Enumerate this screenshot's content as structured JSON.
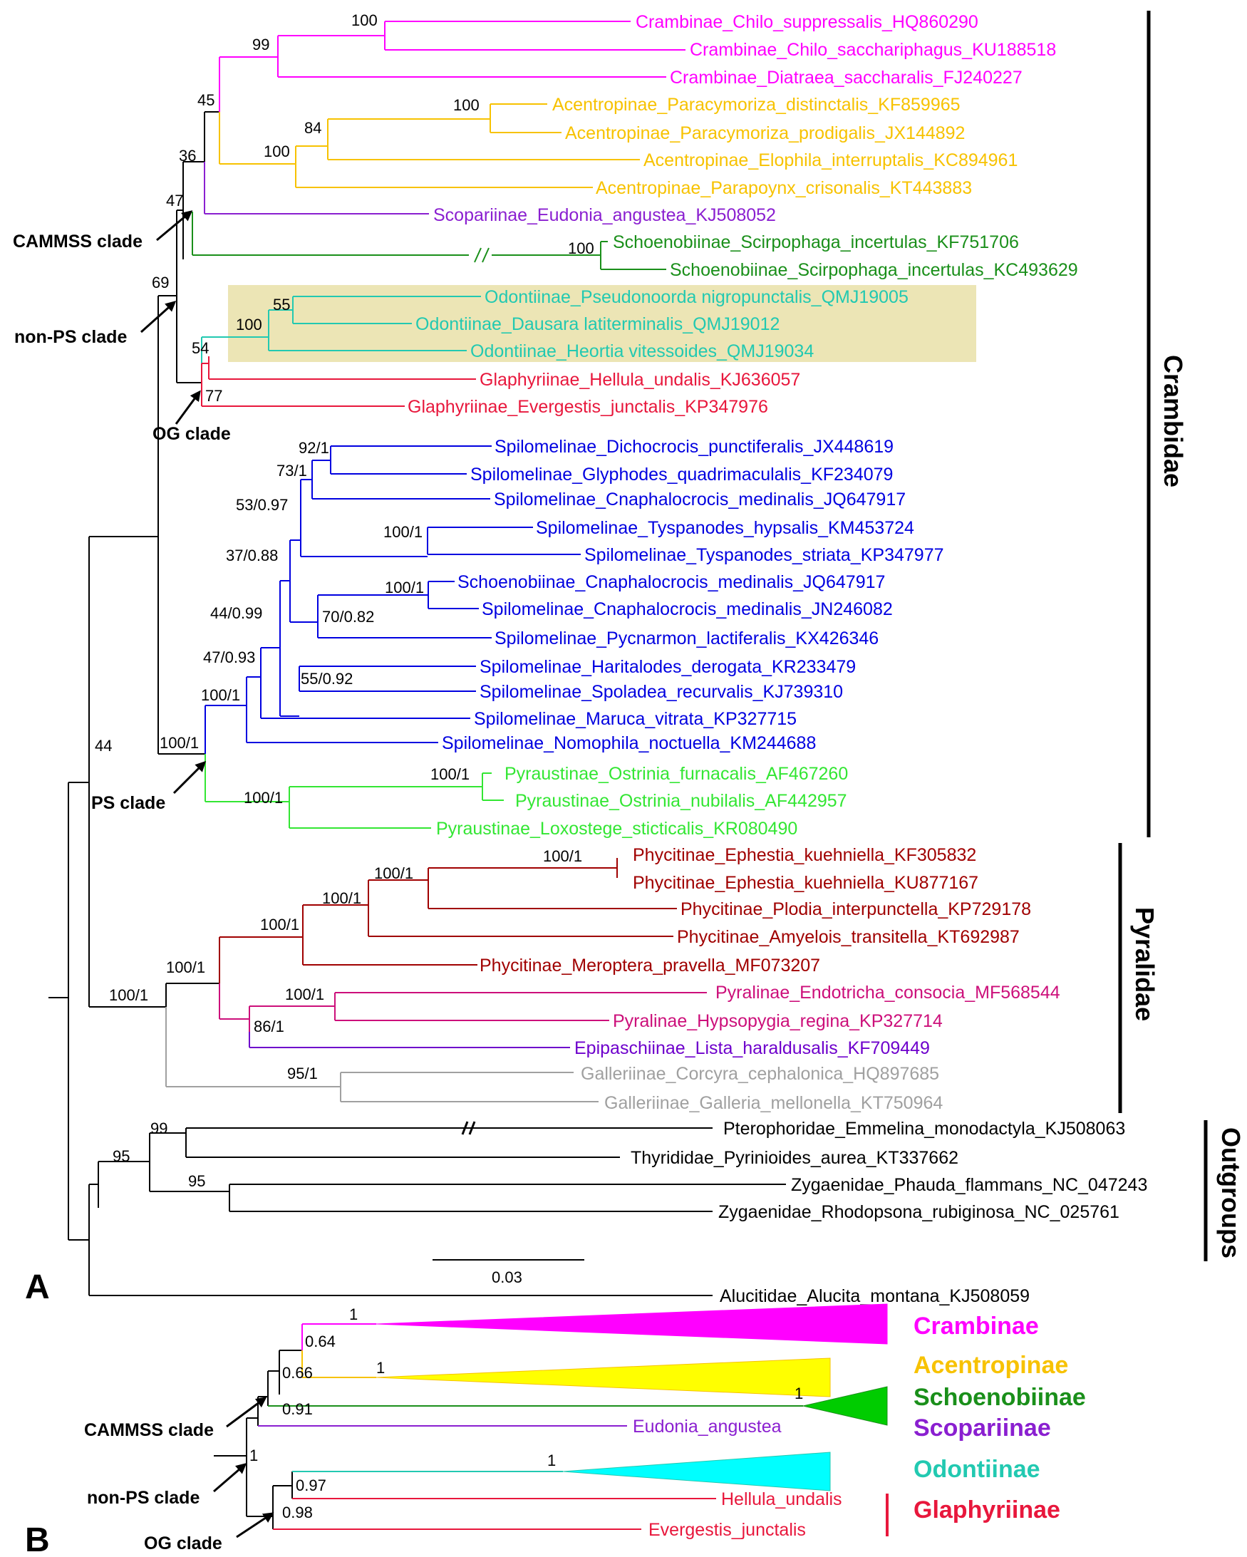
{
  "colors": {
    "crambinae": "#ff00ff",
    "acentropinae": "#f7c200",
    "scopariinae": "#8a1fd0",
    "schoenobiinae": "#1a8f1a",
    "odontiinae": "#22c9b1",
    "glaphyriinae": "#e8173c",
    "spilomelinae": "#0000e0",
    "pyraustinae": "#33e633",
    "phycitinae": "#a00000",
    "pyralinae": "#cc0f7a",
    "epipaschiinae": "#6e00cc",
    "galleriinae": "#a0a0a0",
    "outgroup": "#000000",
    "highlight": "#ece5b5",
    "acentropinae_fill": "#ffff00",
    "schoenobiinae_fill": "#00cc00",
    "odontiinae_fill": "#00ffff"
  },
  "panel_a": {
    "label": "A",
    "taxa": [
      "Crambinae_Chilo_suppressalis_HQ860290",
      "Crambinae_Chilo_sacchariphagus_KU188518",
      "Crambinae_Diatraea_saccharalis_FJ240227",
      "Acentropinae_Paracymoriza_distinctalis_KF859965",
      "Acentropinae_Paracymoriza_prodigalis_JX144892",
      "Acentropinae_Elophila_interruptalis_KC894961",
      "Acentropinae_Parapoynx_crisonalis_KT443883",
      "Scopariinae_Eudonia_angustea_KJ508052",
      "Schoenobiinae_Scirpophaga_incertulas_KF751706",
      "Schoenobiinae_Scirpophaga_incertulas_KC493629",
      "Odontiinae_Pseudonoorda nigropunctalis_QMJ19005",
      "Odontiinae_Dausara latiterminalis_QMJ19012",
      "Odontiinae_Heortia vitessoides_QMJ19034",
      "Glaphyriinae_Hellula_undalis_KJ636057",
      "Glaphyriinae_Evergestis_junctalis_KP347976",
      "Spilomelinae_Dichocrocis_punctiferalis_JX448619",
      "Spilomelinae_Glyphodes_quadrimaculalis_KF234079",
      "Spilomelinae_Cnaphalocrocis_medinalis_JQ647917",
      "Spilomelinae_Tyspanodes_hypsalis_KM453724",
      "Spilomelinae_Tyspanodes_striata_KP347977",
      "Schoenobiinae_Cnaphalocrocis_medinalis_JQ647917",
      "Spilomelinae_Cnaphalocrocis_medinalis_JN246082",
      "Spilomelinae_Pycnarmon_lactiferalis_KX426346",
      "Spilomelinae_Haritalodes_derogata_KR233479",
      "Spilomelinae_Spoladea_recurvalis_KJ739310",
      "Spilomelinae_Maruca_vitrata_KP327715",
      "Spilomelinae_Nomophila_noctuella_KM244688",
      "Pyraustinae_Ostrinia_furnacalis_AF467260",
      "Pyraustinae_Ostrinia_nubilalis_AF442957",
      "Pyraustinae_Loxostege_sticticalis_KR080490",
      "Phycitinae_Ephestia_kuehniella_KF305832",
      "Phycitinae_Ephestia_kuehniella_KU877167",
      "Phycitinae_Plodia_interpunctella_KP729178",
      "Phycitinae_Amyelois_transitella_KT692987",
      "Phycitinae_Meroptera_pravella_MF073207",
      "Pyralinae_Endotricha_consocia_MF568544",
      "Pyralinae_Hypsopygia_regina_KP327714",
      "Epipaschiinae_Lista_haraldusalis_KF709449",
      "Galleriinae_Corcyra_cephalonica_HQ897685",
      "Galleriinae_Galleria_mellonella_KT750964",
      "Pterophoridae_Emmelina_monodactyla_KJ508063",
      "Thyrididae_Pyrinioides_aurea_KT337662",
      "Zygaenidae_Phauda_flammans_NC_047243",
      "Zygaenidae_Rhodopsona_rubiginosa_NC_025761",
      "Alucitidae_Alucita_montana_KJ508059"
    ],
    "supports": [
      "100",
      "99",
      "45",
      "100",
      "84",
      "100",
      "36",
      "47",
      "100",
      "69",
      "55",
      "100",
      "54",
      "77",
      "92/1",
      "73/1",
      "53/0.97",
      "100/1",
      "37/0.88",
      "100/1",
      "70/0.82",
      "44/0.99",
      "55/0.92",
      "47/0.93",
      "100/1",
      "100/1",
      "100/1",
      "100/1",
      "100/1",
      "100/1",
      "100/1",
      "100/1",
      "100/1",
      "86/1",
      "100/1",
      "100/1",
      "95/1",
      "44",
      "99",
      "95",
      "95"
    ],
    "clades": [
      "CAMMSS clade",
      "non-PS clade",
      "OG clade",
      "PS clade"
    ],
    "groups": [
      "Crambidae",
      "Pyralidae",
      "Outgroups"
    ],
    "scale_label": "0.03"
  },
  "panel_b": {
    "label": "B",
    "taxa": [
      "Eudonia_angustea",
      "Hellula_undalis",
      "Evergestis_junctalis"
    ],
    "supports": [
      "1",
      "0.64",
      "1",
      "0.66",
      "1",
      "0.91",
      "1",
      "1",
      "0.97",
      "0.98"
    ],
    "clades": [
      "CAMMSS clade",
      "non-PS clade",
      "OG clade"
    ],
    "subfamilies": [
      "Crambinae",
      "Acentropinae",
      "Schoenobiinae",
      "Scopariinae",
      "Odontiinae",
      "Glaphyriinae"
    ]
  }
}
